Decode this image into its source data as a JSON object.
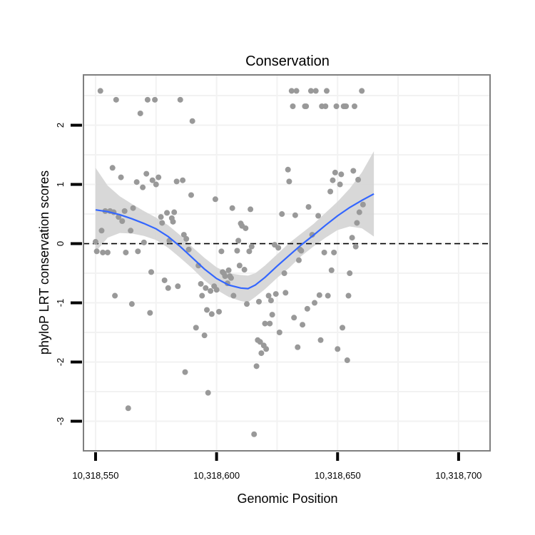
{
  "chart_data": {
    "type": "scatter",
    "title": "Conservation",
    "xlabel": "Genomic Position",
    "ylabel": "phyloP LRT conservation scores",
    "xlim": [
      10318545,
      10318713
    ],
    "ylim": [
      -3.5,
      2.85
    ],
    "x_ticks": [
      10318550,
      10318600,
      10318650,
      10318700
    ],
    "x_tick_labels": [
      "10,318,550",
      "10,318,600",
      "10,318,650",
      "10,318,700"
    ],
    "y_ticks": [
      -3,
      -2,
      -1,
      0,
      1,
      2
    ],
    "y_tick_labels": [
      "-3",
      "-2",
      "-1",
      "0",
      "1",
      "2"
    ],
    "grid": true,
    "reference_line": {
      "y": 0,
      "style": "dashed",
      "color": "#000000"
    },
    "colors": {
      "points": "#999999",
      "smooth_line": "#3366ff",
      "confidence_band": "#d4d4d4",
      "panel_border": "#7f7f7f",
      "grid": "#f2f2f2"
    },
    "points": [
      [
        10318550,
        0.03
      ],
      [
        10318550.5,
        -0.13
      ],
      [
        10318552,
        2.58
      ],
      [
        10318552.5,
        0.22
      ],
      [
        10318553,
        -0.15
      ],
      [
        10318554,
        0.55
      ],
      [
        10318555,
        -0.15
      ],
      [
        10318556,
        0.55
      ],
      [
        10318557,
        1.28
      ],
      [
        10318557.5,
        0.53
      ],
      [
        10318558,
        -0.88
      ],
      [
        10318558.5,
        2.43
      ],
      [
        10318559.5,
        0.45
      ],
      [
        10318560.5,
        1.12
      ],
      [
        10318561,
        0.38
      ],
      [
        10318562,
        0.55
      ],
      [
        10318562.5,
        -0.15
      ],
      [
        10318563.5,
        -2.78
      ],
      [
        10318564.5,
        0.22
      ],
      [
        10318565,
        -1.02
      ],
      [
        10318565.5,
        0.6
      ],
      [
        10318567,
        1.04
      ],
      [
        10318567.5,
        -0.13
      ],
      [
        10318568.5,
        2.2
      ],
      [
        10318569.5,
        0.95
      ],
      [
        10318570,
        0.02
      ],
      [
        10318571,
        1.18
      ],
      [
        10318571.5,
        2.43
      ],
      [
        10318572.5,
        -1.17
      ],
      [
        10318573,
        -0.48
      ],
      [
        10318573.5,
        1.07
      ],
      [
        10318574.5,
        2.43
      ],
      [
        10318575,
        1.0
      ],
      [
        10318576,
        1.12
      ],
      [
        10318577,
        0.45
      ],
      [
        10318577.5,
        0.35
      ],
      [
        10318578.5,
        -0.62
      ],
      [
        10318579.5,
        0.52
      ],
      [
        10318580,
        -0.75
      ],
      [
        10318580.5,
        0.05
      ],
      [
        10318581.5,
        0.43
      ],
      [
        10318582,
        0.37
      ],
      [
        10318582.5,
        0.53
      ],
      [
        10318583.5,
        1.05
      ],
      [
        10318584,
        -0.72
      ],
      [
        10318585,
        2.43
      ],
      [
        10318586,
        1.07
      ],
      [
        10318586.5,
        0.15
      ],
      [
        10318587,
        -2.17
      ],
      [
        10318587.5,
        0.08
      ],
      [
        10318588.5,
        -0.1
      ],
      [
        10318589.5,
        0.82
      ],
      [
        10318590,
        2.07
      ],
      [
        10318591.5,
        -1.42
      ],
      [
        10318592.5,
        -0.37
      ],
      [
        10318593.5,
        -0.68
      ],
      [
        10318594,
        -0.88
      ],
      [
        10318595,
        -1.55
      ],
      [
        10318595.5,
        -0.75
      ],
      [
        10318596,
        -1.12
      ],
      [
        10318596.5,
        -2.52
      ],
      [
        10318597.5,
        -0.8
      ],
      [
        10318598,
        -1.19
      ],
      [
        10318599,
        -0.72
      ],
      [
        10318599.5,
        0.75
      ],
      [
        10318600,
        -0.78
      ],
      [
        10318601,
        -1.15
      ],
      [
        10318602,
        -0.13
      ],
      [
        10318602.5,
        -0.48
      ],
      [
        10318603,
        -0.5
      ],
      [
        10318603.5,
        -0.55
      ],
      [
        10318604.5,
        -0.67
      ],
      [
        10318605,
        -0.45
      ],
      [
        10318605.5,
        -0.55
      ],
      [
        10318606,
        -0.58
      ],
      [
        10318606.5,
        0.6
      ],
      [
        10318607,
        -0.88
      ],
      [
        10318608.5,
        -0.12
      ],
      [
        10318609,
        0.05
      ],
      [
        10318609.5,
        -0.37
      ],
      [
        10318610,
        0.34
      ],
      [
        10318610.5,
        0.3
      ],
      [
        10318611.5,
        -0.44
      ],
      [
        10318612,
        0.26
      ],
      [
        10318612.5,
        -1.02
      ],
      [
        10318613.5,
        -0.13
      ],
      [
        10318614,
        0.58
      ],
      [
        10318614.5,
        -0.05
      ],
      [
        10318615.5,
        -3.22
      ],
      [
        10318616.5,
        -2.07
      ],
      [
        10318617,
        -1.63
      ],
      [
        10318617.5,
        -0.98
      ],
      [
        10318618,
        -1.66
      ],
      [
        10318618.5,
        -1.85
      ],
      [
        10318619.5,
        -1.72
      ],
      [
        10318620,
        -1.35
      ],
      [
        10318620.5,
        -1.78
      ],
      [
        10318621.5,
        -0.88
      ],
      [
        10318622,
        -1.35
      ],
      [
        10318622.5,
        -0.96
      ],
      [
        10318623,
        -1.2
      ],
      [
        10318624,
        -0.02
      ],
      [
        10318624.5,
        -0.85
      ],
      [
        10318625.5,
        -0.07
      ],
      [
        10318626,
        -1.5
      ],
      [
        10318627,
        0.5
      ],
      [
        10318628,
        -0.5
      ],
      [
        10318628.5,
        -0.83
      ],
      [
        10318629.5,
        1.25
      ],
      [
        10318630,
        1.05
      ],
      [
        10318631,
        2.58
      ],
      [
        10318631.5,
        2.32
      ],
      [
        10318632,
        -1.25
      ],
      [
        10318632.5,
        0.48
      ],
      [
        10318633,
        2.58
      ],
      [
        10318633.5,
        -1.75
      ],
      [
        10318634,
        -0.28
      ],
      [
        10318634.5,
        -0.1
      ],
      [
        10318635,
        -0.12
      ],
      [
        10318635.5,
        -1.37
      ],
      [
        10318636.5,
        2.32
      ],
      [
        10318637,
        2.32
      ],
      [
        10318637.5,
        -1.1
      ],
      [
        10318638,
        0.62
      ],
      [
        10318639,
        2.58
      ],
      [
        10318639.5,
        0.15
      ],
      [
        10318640.5,
        -1.0
      ],
      [
        10318641,
        2.58
      ],
      [
        10318642,
        0.47
      ],
      [
        10318642.5,
        -0.87
      ],
      [
        10318643,
        -1.63
      ],
      [
        10318643.5,
        2.32
      ],
      [
        10318644.5,
        -0.15
      ],
      [
        10318645,
        2.32
      ],
      [
        10318645.5,
        2.58
      ],
      [
        10318646,
        -0.88
      ],
      [
        10318647,
        0.88
      ],
      [
        10318647.5,
        -0.45
      ],
      [
        10318648,
        1.07
      ],
      [
        10318648.5,
        -0.15
      ],
      [
        10318649,
        1.2
      ],
      [
        10318649.5,
        2.32
      ],
      [
        10318650,
        -1.78
      ],
      [
        10318651,
        1.0
      ],
      [
        10318651.5,
        1.17
      ],
      [
        10318652,
        -1.42
      ],
      [
        10318652.5,
        2.32
      ],
      [
        10318653,
        2.32
      ],
      [
        10318653.5,
        2.32
      ],
      [
        10318654,
        -1.97
      ],
      [
        10318654.5,
        -0.88
      ],
      [
        10318655,
        -0.5
      ],
      [
        10318656,
        0.1
      ],
      [
        10318656.5,
        1.23
      ],
      [
        10318657,
        2.32
      ],
      [
        10318657.5,
        -0.05
      ],
      [
        10318658,
        0.35
      ],
      [
        10318658.5,
        1.08
      ],
      [
        10318659,
        0.53
      ],
      [
        10318660,
        2.58
      ],
      [
        10318660.5,
        0.66
      ]
    ],
    "smooth": [
      [
        10318550,
        0.57
      ],
      [
        10318555,
        0.54
      ],
      [
        10318560,
        0.49
      ],
      [
        10318565,
        0.42
      ],
      [
        10318570,
        0.34
      ],
      [
        10318575,
        0.25
      ],
      [
        10318580,
        0.12
      ],
      [
        10318585,
        -0.05
      ],
      [
        10318590,
        -0.24
      ],
      [
        10318595,
        -0.43
      ],
      [
        10318600,
        -0.59
      ],
      [
        10318605,
        -0.7
      ],
      [
        10318610,
        -0.75
      ],
      [
        10318613,
        -0.76
      ],
      [
        10318616,
        -0.7
      ],
      [
        10318620,
        -0.57
      ],
      [
        10318625,
        -0.38
      ],
      [
        10318630,
        -0.2
      ],
      [
        10318635,
        -0.02
      ],
      [
        10318640,
        0.14
      ],
      [
        10318645,
        0.31
      ],
      [
        10318650,
        0.47
      ],
      [
        10318655,
        0.61
      ],
      [
        10318660,
        0.73
      ],
      [
        10318665,
        0.84
      ]
    ],
    "band_upper": [
      [
        10318550,
        1.28
      ],
      [
        10318555,
        0.98
      ],
      [
        10318560,
        0.8
      ],
      [
        10318565,
        0.67
      ],
      [
        10318570,
        0.55
      ],
      [
        10318575,
        0.44
      ],
      [
        10318580,
        0.31
      ],
      [
        10318585,
        0.14
      ],
      [
        10318590,
        -0.06
      ],
      [
        10318595,
        -0.24
      ],
      [
        10318600,
        -0.4
      ],
      [
        10318605,
        -0.5
      ],
      [
        10318610,
        -0.53
      ],
      [
        10318613,
        -0.54
      ],
      [
        10318616,
        -0.5
      ],
      [
        10318620,
        -0.37
      ],
      [
        10318625,
        -0.18
      ],
      [
        10318630,
        0.01
      ],
      [
        10318635,
        0.17
      ],
      [
        10318640,
        0.33
      ],
      [
        10318645,
        0.52
      ],
      [
        10318650,
        0.71
      ],
      [
        10318655,
        0.93
      ],
      [
        10318660,
        1.2
      ],
      [
        10318665,
        1.56
      ]
    ],
    "band_lower": [
      [
        10318550,
        -0.14
      ],
      [
        10318555,
        0.1
      ],
      [
        10318560,
        0.18
      ],
      [
        10318565,
        0.17
      ],
      [
        10318570,
        0.13
      ],
      [
        10318575,
        0.06
      ],
      [
        10318580,
        -0.07
      ],
      [
        10318585,
        -0.24
      ],
      [
        10318590,
        -0.42
      ],
      [
        10318595,
        -0.62
      ],
      [
        10318600,
        -0.78
      ],
      [
        10318605,
        -0.9
      ],
      [
        10318610,
        -0.97
      ],
      [
        10318613,
        -0.99
      ],
      [
        10318616,
        -0.9
      ],
      [
        10318620,
        -0.77
      ],
      [
        10318625,
        -0.58
      ],
      [
        10318630,
        -0.41
      ],
      [
        10318635,
        -0.21
      ],
      [
        10318640,
        -0.05
      ],
      [
        10318645,
        0.1
      ],
      [
        10318650,
        0.23
      ],
      [
        10318655,
        0.29
      ],
      [
        10318660,
        0.26
      ],
      [
        10318665,
        0.12
      ]
    ]
  }
}
